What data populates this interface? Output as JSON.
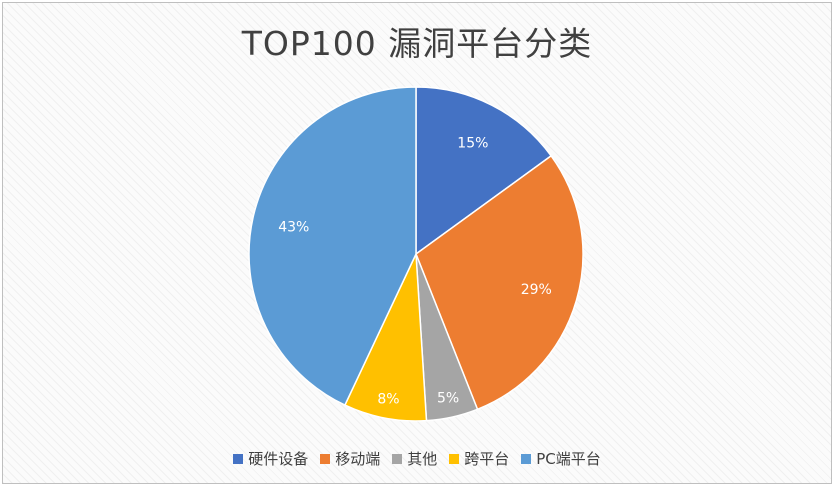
{
  "chart_data": {
    "type": "pie",
    "title": "TOP100 漏洞平台分类",
    "categories": [
      "硬件设备",
      "移动端",
      "其他",
      "跨平台",
      "PC端平台"
    ],
    "values": [
      15,
      29,
      5,
      8,
      43
    ],
    "labels": [
      "15%",
      "29%",
      "5%",
      "8%",
      "43%"
    ],
    "colors": [
      "#4472c4",
      "#ed7d31",
      "#a5a5a5",
      "#ffc000",
      "#5b9bd5"
    ],
    "legend_position": "bottom"
  }
}
